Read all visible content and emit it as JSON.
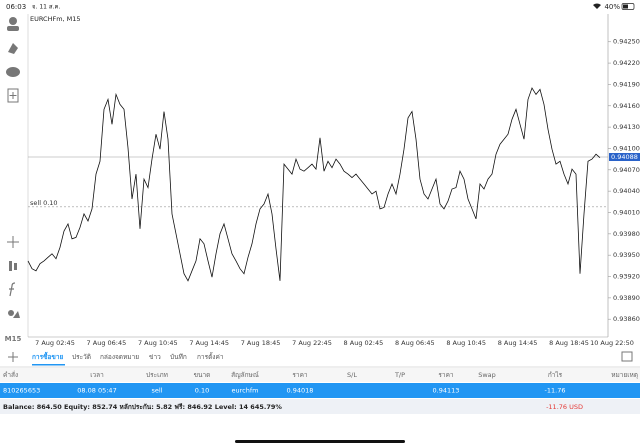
{
  "status_bar": {
    "time": "06:03",
    "date": "จ. 11 ส.ค.",
    "battery": "40%"
  },
  "chart": {
    "type": "line",
    "symbol_label": "EURCHFm, M15",
    "color": "#111111",
    "values": [
      0.93942,
      0.93931,
      0.93928,
      0.93938,
      0.93942,
      0.93947,
      0.93952,
      0.93945,
      0.93961,
      0.93984,
      0.93994,
      0.93973,
      0.93975,
      0.93989,
      0.94008,
      0.93998,
      0.94015,
      0.94064,
      0.94082,
      0.94155,
      0.94169,
      0.94134,
      0.94176,
      0.94162,
      0.94155,
      0.94101,
      0.94029,
      0.94064,
      0.93987,
      0.94057,
      0.94045,
      0.94085,
      0.9412,
      0.94099,
      0.94152,
      0.94113,
      0.94008,
      0.9398,
      0.93952,
      0.93924,
      0.93914,
      0.93928,
      0.93942,
      0.93973,
      0.93966,
      0.93942,
      0.93919,
      0.93952,
      0.9398,
      0.93994,
      0.93973,
      0.93952,
      0.93942,
      0.93931,
      0.93924,
      0.93947,
      0.93966,
      0.93994,
      0.94015,
      0.94022,
      0.94036,
      0.94008,
      0.93959,
      0.93914,
      0.94078,
      0.94071,
      0.94064,
      0.94085,
      0.94071,
      0.94068,
      0.94073,
      0.94078,
      0.94071,
      0.94115,
      0.94068,
      0.94082,
      0.94073,
      0.94085,
      0.94078,
      0.94068,
      0.94064,
      0.94059,
      0.94064,
      0.94057,
      0.9405,
      0.94043,
      0.94036,
      0.9404,
      0.94015,
      0.94017,
      0.94036,
      0.9405,
      0.94036,
      0.94064,
      0.94099,
      0.94143,
      0.94152,
      0.94113,
      0.94057,
      0.94036,
      0.94029,
      0.94043,
      0.94057,
      0.94022,
      0.94015,
      0.94026,
      0.94043,
      0.94045,
      0.94068,
      0.94057,
      0.94029,
      0.94015,
      0.94001,
      0.9405,
      0.94043,
      0.94057,
      0.94064,
      0.94092,
      0.94106,
      0.94113,
      0.9412,
      0.94141,
      0.94155,
      0.94134,
      0.94113,
      0.94169,
      0.94185,
      0.94176,
      0.94183,
      0.94162,
      0.94127,
      0.94099,
      0.94078,
      0.94082,
      0.94064,
      0.9405,
      0.94071,
      0.94064,
      0.93924,
      0.94008,
      0.94082,
      0.94085,
      0.94092,
      0.94087
    ],
    "x_labels": [
      "7 Aug 02:45",
      "7 Aug 06:45",
      "7 Aug 10:45",
      "7 Aug 14:45",
      "7 Aug 18:45",
      "7 Aug 22:45",
      "8 Aug 02:45",
      "8 Aug 06:45",
      "8 Aug 10:45",
      "8 Aug 14:45",
      "8 Aug 18:45",
      "10 Aug 22:50"
    ],
    "ylim": [
      0.93835,
      0.94289
    ],
    "yticks": [
      {
        "value": 0.9425,
        "label": "0.94250"
      },
      {
        "value": 0.9422,
        "label": "0.94220"
      },
      {
        "value": 0.9419,
        "label": "0.94190"
      },
      {
        "value": 0.9416,
        "label": "0.94160"
      },
      {
        "value": 0.9413,
        "label": "0.94130"
      },
      {
        "value": 0.941,
        "label": "0.94100"
      },
      {
        "value": 0.9407,
        "label": "0.94070"
      },
      {
        "value": 0.9404,
        "label": "0.94040"
      },
      {
        "value": 0.9401,
        "label": "0.94010"
      },
      {
        "value": 0.9398,
        "label": "0.93980"
      },
      {
        "value": 0.9395,
        "label": "0.93950"
      },
      {
        "value": 0.9392,
        "label": "0.93920"
      },
      {
        "value": 0.9389,
        "label": "0.93890"
      },
      {
        "value": 0.9386,
        "label": "0.93860"
      }
    ],
    "current_price": 0.94088,
    "sell_line": {
      "label": "sell 0.10",
      "price": 0.94018
    }
  },
  "toolbar": {
    "timeframe": "M15"
  },
  "tabs": [
    "การซื้อขาย",
    "ประวัติ",
    "กล่องจดหมาย",
    "ข่าว",
    "บันทึก",
    "การตั้งค่า"
  ],
  "active_tab": 0,
  "table": {
    "columns": [
      "คำสั่ง",
      "เวลา",
      "ประเภท",
      "ขนาด",
      "สัญลักษณ์",
      "ราคา",
      "S/L",
      "T/P",
      "ราคา",
      "Swap",
      "กำไร",
      "หมายเหตุ"
    ],
    "rows": [
      [
        "810265653",
        "08.08 05:47",
        "sell",
        "0.10",
        "eurchfm",
        "0.94018",
        null,
        null,
        "0.94113",
        null,
        "-11.76",
        null
      ]
    ]
  },
  "footer": {
    "summary": "Balance: 864.50 Equity: 852.74 หลักประกัน: 5.82 ฟรี: 846.92 Level: 14 645.79%",
    "profit": "-11.76 USD"
  }
}
